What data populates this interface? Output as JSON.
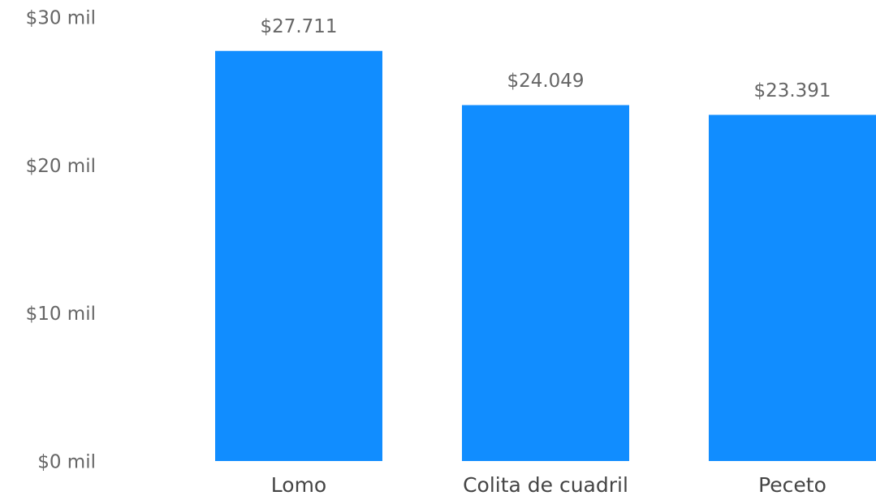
{
  "chart_data": {
    "type": "bar",
    "categories": [
      "Lomo",
      "Colita de cuadril",
      "Peceto"
    ],
    "values": [
      27711,
      24049,
      23391
    ],
    "value_labels": [
      "$27.711",
      "$24.049",
      "$23.391"
    ],
    "color": "#118dff",
    "ylim": [
      0,
      30000
    ],
    "yticks": [
      {
        "value": 0,
        "label": "$0 mil"
      },
      {
        "value": 10000,
        "label": "$10 mil"
      },
      {
        "value": 20000,
        "label": "$20 mil"
      },
      {
        "value": 30000,
        "label": "$30 mil"
      }
    ],
    "grid": false
  }
}
